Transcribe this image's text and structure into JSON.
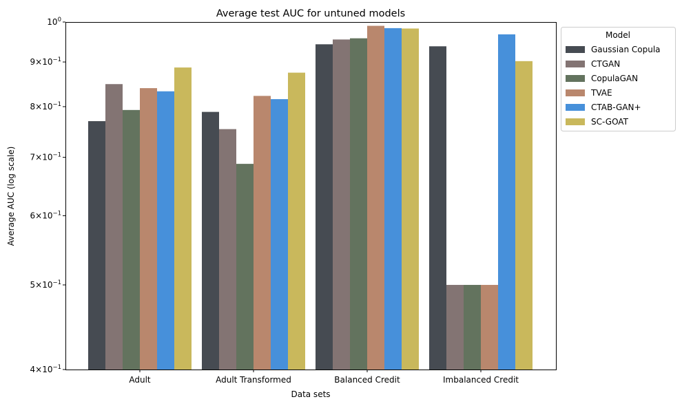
{
  "chart_data": {
    "type": "bar",
    "title": "Average test AUC for untuned models",
    "xlabel": "Data sets",
    "ylabel": "Average AUC (log scale)",
    "yscale": "log",
    "ylim": [
      0.4,
      1.0
    ],
    "ytick_labels": [
      {
        "value": 0.4,
        "base": "4",
        "mult": "×",
        "pow": "10",
        "exp": "−1"
      },
      {
        "value": 0.5,
        "base": "5",
        "mult": "×",
        "pow": "10",
        "exp": "−1"
      },
      {
        "value": 0.6,
        "base": "6",
        "mult": "×",
        "pow": "10",
        "exp": "−1"
      },
      {
        "value": 0.7,
        "base": "7",
        "mult": "×",
        "pow": "10",
        "exp": "−1"
      },
      {
        "value": 0.8,
        "base": "8",
        "mult": "×",
        "pow": "10",
        "exp": "−1"
      },
      {
        "value": 0.9,
        "base": "9",
        "mult": "×",
        "pow": "10",
        "exp": "−1"
      },
      {
        "value": 1.0,
        "base": "",
        "mult": "",
        "pow": "10",
        "exp": "0"
      }
    ],
    "categories": [
      "Adult",
      "Adult Transformed",
      "Balanced Credit",
      "Imbalanced Credit"
    ],
    "legend": {
      "title": "Model",
      "position": "outside-upper-right"
    },
    "grid": false,
    "series": [
      {
        "name": "Gaussian Copula",
        "color": "#464b52",
        "values": [
          0.77,
          0.789,
          0.943,
          0.938
        ]
      },
      {
        "name": "CTGAN",
        "color": "#837473",
        "values": [
          0.849,
          0.754,
          0.955,
          0.5
        ]
      },
      {
        "name": "CopulaGAN",
        "color": "#63735e",
        "values": [
          0.793,
          0.688,
          0.958,
          0.5
        ]
      },
      {
        "name": "TVAE",
        "color": "#b9876d",
        "values": [
          0.84,
          0.823,
          0.99,
          0.5
        ]
      },
      {
        "name": "CTAB-GAN+",
        "color": "#4790da",
        "values": [
          0.833,
          0.816,
          0.984,
          0.968
        ]
      },
      {
        "name": "SC-GOAT",
        "color": "#c9b85c",
        "values": [
          0.887,
          0.875,
          0.983,
          0.902
        ]
      }
    ]
  }
}
